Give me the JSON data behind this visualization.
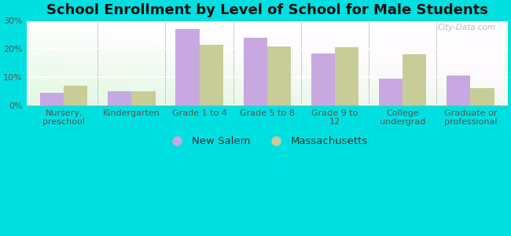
{
  "title": "School Enrollment by Level of School for Male Students",
  "categories": [
    "Nursery,\npreschool",
    "Kindergarten",
    "Grade 1 to 4",
    "Grade 5 to 8",
    "Grade 9 to\n12",
    "College\nundergrad",
    "Graduate or\nprofessional"
  ],
  "new_salem": [
    4.5,
    5.0,
    27.0,
    24.0,
    18.5,
    9.5,
    10.5
  ],
  "massachusetts": [
    7.0,
    5.0,
    21.5,
    21.0,
    20.5,
    18.0,
    6.0
  ],
  "new_salem_color": "#c8a8e0",
  "massachusetts_color": "#c8cc99",
  "background_color": "#00e0e0",
  "ylim": [
    0,
    30
  ],
  "yticks": [
    0,
    10,
    20,
    30
  ],
  "ytick_labels": [
    "0%",
    "10%",
    "20%",
    "30%"
  ],
  "legend_label_1": "New Salem",
  "legend_label_2": "Massachusetts",
  "title_fontsize": 13,
  "tick_fontsize": 8,
  "legend_fontsize": 9.5,
  "bar_width": 0.35,
  "watermark": "City-Data.com"
}
